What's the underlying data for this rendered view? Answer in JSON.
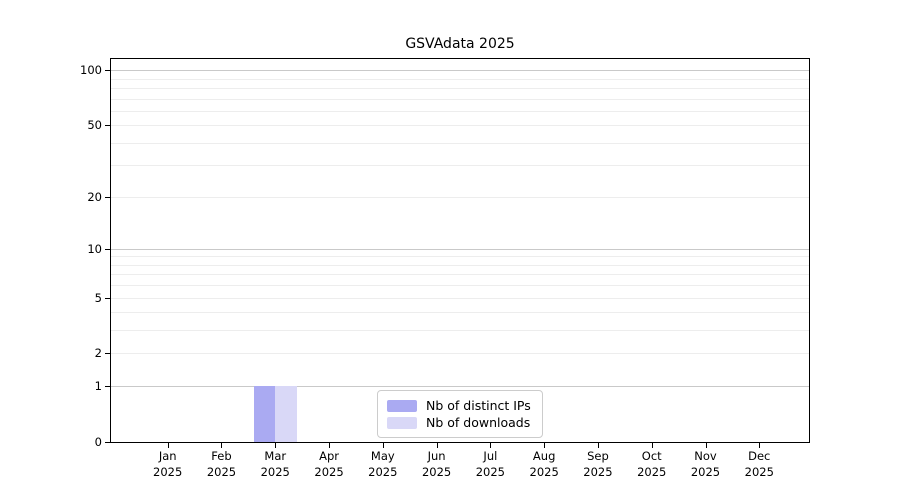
{
  "chart_data": {
    "type": "bar",
    "title": "GSVAdata 2025",
    "categories": [
      "Jan",
      "Feb",
      "Mar",
      "Apr",
      "May",
      "Jun",
      "Jul",
      "Aug",
      "Sep",
      "Oct",
      "Nov",
      "Dec"
    ],
    "x_year_label": "2025",
    "series": [
      {
        "name": "Nb of distinct IPs",
        "color": "#aaaaf2",
        "values": [
          0,
          0,
          1,
          0,
          0,
          0,
          0,
          0,
          0,
          0,
          0,
          0
        ]
      },
      {
        "name": "Nb of downloads",
        "color": "#d9d8f7",
        "values": [
          0,
          0,
          1,
          0,
          0,
          0,
          0,
          0,
          0,
          0,
          0,
          0
        ]
      }
    ],
    "y_ticks": [
      0,
      1,
      2,
      5,
      10,
      20,
      50,
      100
    ],
    "y_scale": "log1p",
    "ylim": [
      0,
      115
    ],
    "grid": "both",
    "legend_position": "lower center",
    "colors": {
      "spine": "#000000",
      "grid_major": "#c9c9c9",
      "grid_minor": "#ededed",
      "legend_border": "#cccccc"
    }
  }
}
